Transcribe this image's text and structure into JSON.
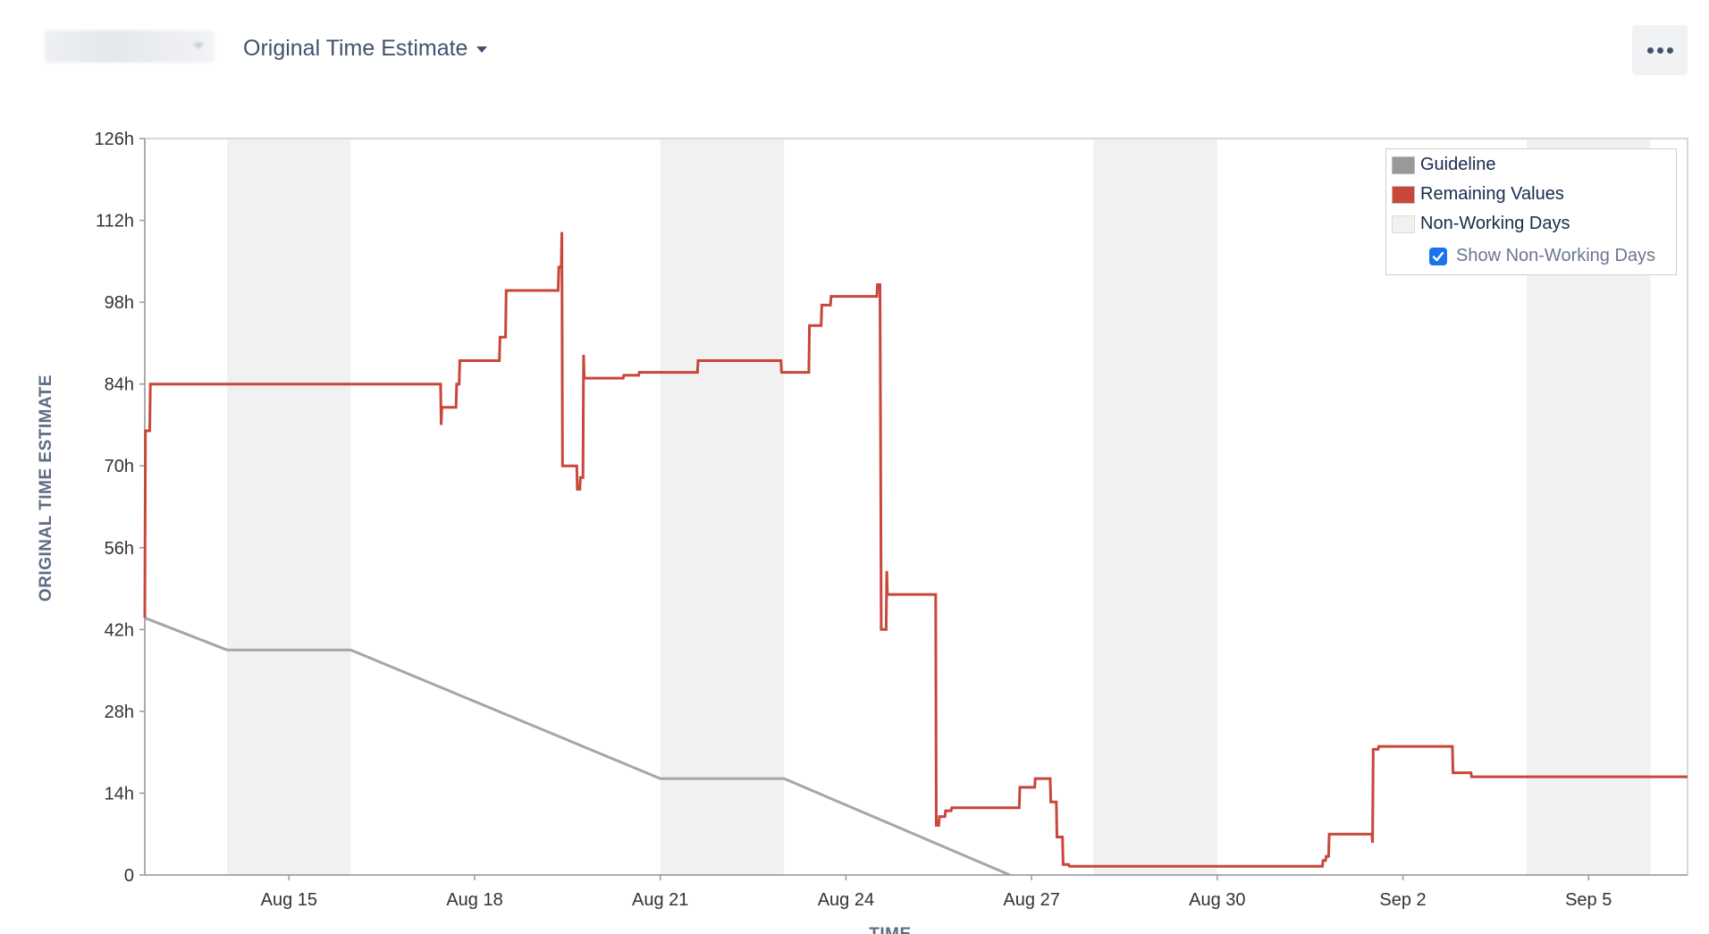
{
  "header": {
    "board_placeholder": " ",
    "estimate_label": "Original Time Estimate",
    "more_icon": "more-horizontal-icon"
  },
  "colors": {
    "guideline": "#a6a6a6",
    "remaining": "#c8463a",
    "non_working": "#f1f1f1",
    "legend_guideline_swatch": "#999999",
    "legend_remaining_swatch": "#c8463a",
    "legend_nonworking_swatch": "#f1f1f1"
  },
  "legend": {
    "guideline": "Guideline",
    "remaining": "Remaining Values",
    "non_working": "Non-Working Days",
    "show_non_working": "Show Non-Working Days",
    "show_non_working_checked": true
  },
  "chart_data": {
    "type": "line",
    "ylabel": "ORIGINAL TIME ESTIMATE",
    "xlabel": "TIME",
    "ylim": [
      0,
      126
    ],
    "y_unit": "h",
    "y_ticks": [
      0,
      14,
      28,
      42,
      56,
      70,
      84,
      98,
      112,
      126
    ],
    "y_tick_labels": [
      "0",
      "14h",
      "28h",
      "42h",
      "56h",
      "70h",
      "84h",
      "98h",
      "112h",
      "126h"
    ],
    "x_tick_labels": [
      "Aug 15",
      "Aug 18",
      "Aug 21",
      "Aug 24",
      "Aug 27",
      "Aug 30",
      "Sep 2",
      "Sep 5"
    ],
    "x_tick_dates": [
      15,
      18,
      21,
      24,
      27,
      30,
      33,
      36
    ],
    "x_range": [
      12.67,
      37.6
    ],
    "non_working_days": [
      [
        14,
        16
      ],
      [
        21,
        23
      ],
      [
        28,
        30
      ],
      [
        35,
        37
      ]
    ],
    "series": [
      {
        "name": "Guideline",
        "points": [
          [
            12.67,
            44
          ],
          [
            14,
            38.5
          ],
          [
            16,
            38.5
          ],
          [
            21,
            16.5
          ],
          [
            23,
            16.5
          ],
          [
            26.65,
            0
          ]
        ]
      },
      {
        "name": "Remaining Values",
        "points": [
          [
            12.67,
            44
          ],
          [
            12.68,
            76
          ],
          [
            12.75,
            76
          ],
          [
            12.76,
            84
          ],
          [
            17.45,
            84
          ],
          [
            17.46,
            77
          ],
          [
            17.47,
            80
          ],
          [
            17.7,
            80
          ],
          [
            17.71,
            84
          ],
          [
            17.75,
            84
          ],
          [
            17.76,
            88
          ],
          [
            18.4,
            88
          ],
          [
            18.41,
            92
          ],
          [
            18.5,
            92
          ],
          [
            18.51,
            100
          ],
          [
            19.35,
            100
          ],
          [
            19.36,
            104
          ],
          [
            19.4,
            104
          ],
          [
            19.41,
            110
          ],
          [
            19.42,
            70
          ],
          [
            19.65,
            70
          ],
          [
            19.66,
            66
          ],
          [
            19.7,
            66
          ],
          [
            19.71,
            68
          ],
          [
            19.75,
            68
          ],
          [
            19.76,
            89
          ],
          [
            19.77,
            85
          ],
          [
            20.4,
            85
          ],
          [
            20.41,
            85.5
          ],
          [
            20.65,
            85.5
          ],
          [
            20.66,
            86
          ],
          [
            21.6,
            86
          ],
          [
            21.61,
            88
          ],
          [
            22.95,
            88
          ],
          [
            22.96,
            86
          ],
          [
            23.4,
            86
          ],
          [
            23.41,
            94
          ],
          [
            23.6,
            94
          ],
          [
            23.61,
            97.5
          ],
          [
            23.75,
            97.5
          ],
          [
            23.76,
            99
          ],
          [
            24.5,
            99
          ],
          [
            24.51,
            101
          ],
          [
            24.55,
            101
          ],
          [
            24.56,
            74
          ],
          [
            24.57,
            42
          ],
          [
            24.65,
            42
          ],
          [
            24.66,
            52
          ],
          [
            24.67,
            48
          ],
          [
            25.45,
            48
          ],
          [
            25.46,
            8.5
          ],
          [
            25.5,
            8.5
          ],
          [
            25.51,
            10
          ],
          [
            25.6,
            10
          ],
          [
            25.61,
            11
          ],
          [
            25.7,
            11
          ],
          [
            25.71,
            11.5
          ],
          [
            26.8,
            11.5
          ],
          [
            26.81,
            15
          ],
          [
            27.05,
            15
          ],
          [
            27.06,
            16.5
          ],
          [
            27.3,
            16.5
          ],
          [
            27.31,
            12.5
          ],
          [
            27.4,
            12.5
          ],
          [
            27.41,
            6.5
          ],
          [
            27.5,
            6.5
          ],
          [
            27.51,
            1.8
          ],
          [
            27.6,
            1.8
          ],
          [
            27.61,
            1.5
          ],
          [
            31.7,
            1.5
          ],
          [
            31.71,
            2.5
          ],
          [
            31.75,
            2.5
          ],
          [
            31.76,
            3.2
          ],
          [
            31.8,
            3.2
          ],
          [
            31.81,
            7
          ],
          [
            32.5,
            7
          ],
          [
            32.51,
            5.5
          ],
          [
            32.52,
            21.5
          ],
          [
            32.6,
            21.5
          ],
          [
            32.61,
            22
          ],
          [
            33.8,
            22
          ],
          [
            33.81,
            17.5
          ],
          [
            34.1,
            17.5
          ],
          [
            34.11,
            16.8
          ],
          [
            37.6,
            16.8
          ]
        ]
      }
    ]
  }
}
